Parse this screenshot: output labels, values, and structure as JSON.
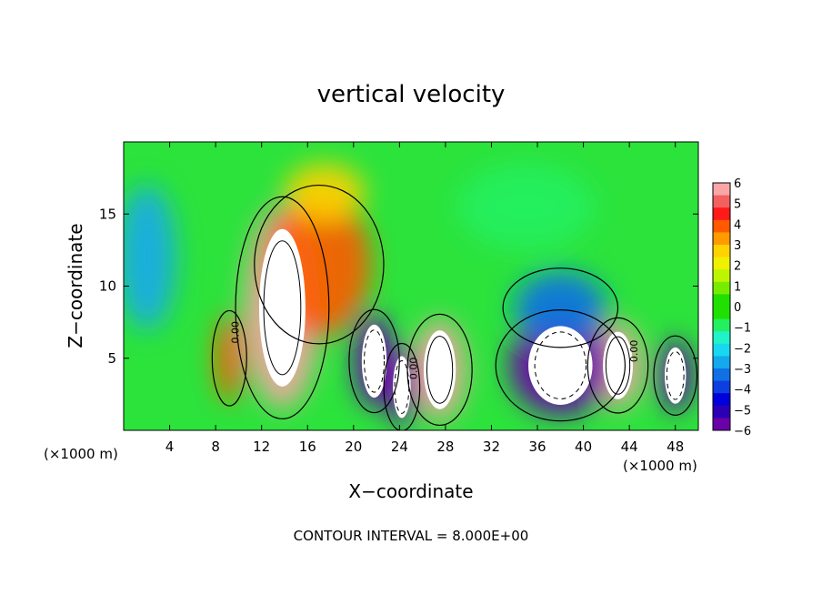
{
  "chart_data": {
    "type": "heatmap",
    "title": "vertical velocity",
    "xlabel": "X−coordinate",
    "ylabel": "Z−coordinate",
    "x_unit_left": "(×1000 m)",
    "x_unit_right": "(×1000 m)",
    "xlim": [
      0,
      50
    ],
    "ylim": [
      0,
      20
    ],
    "x_ticks": [
      4,
      8,
      12,
      16,
      20,
      24,
      28,
      32,
      36,
      40,
      44,
      48
    ],
    "y_ticks": [
      5,
      10,
      15
    ],
    "grid": false,
    "colorbar": {
      "ticks": [
        "6",
        "5",
        "4",
        "3",
        "2",
        "1",
        "0",
        "−1",
        "−2",
        "−3",
        "−4",
        "−5",
        "−6"
      ],
      "range": [
        -6,
        6
      ],
      "colors": [
        "#f8a6a6",
        "#f26060",
        "#ff1a1a",
        "#ff5a00",
        "#ff9a00",
        "#ffd300",
        "#f0f000",
        "#bdf500",
        "#78ec00",
        "#1fe000",
        "#1fe000",
        "#24ef60",
        "#20f3c8",
        "#18d8ef",
        "#14a8ec",
        "#1070e4",
        "#0d3ee0",
        "#0000dc",
        "#2a00b4",
        "#6a00a8"
      ]
    },
    "cells": [
      {
        "x": 13.8,
        "z": 8.5,
        "w": 6.5,
        "h": 14,
        "v": 6
      },
      {
        "x": 17.0,
        "z": 11.5,
        "w": 9,
        "h": 10,
        "v": 4.2
      },
      {
        "x": 17.5,
        "z": 16.5,
        "w": 7,
        "h": 4,
        "v": 2.5
      },
      {
        "x": 27.5,
        "z": 4.2,
        "w": 4.5,
        "h": 7,
        "v": 6
      },
      {
        "x": 43.0,
        "z": 4.5,
        "w": 4.2,
        "h": 6,
        "v": 6
      },
      {
        "x": 9.2,
        "z": 5.0,
        "w": 2.4,
        "h": 6,
        "v": 4
      },
      {
        "x": 21.8,
        "z": 4.8,
        "w": 3.5,
        "h": 6.5,
        "v": -6
      },
      {
        "x": 24.2,
        "z": 3.0,
        "w": 2.5,
        "h": 5.5,
        "v": -6
      },
      {
        "x": 38.0,
        "z": 4.5,
        "w": 9,
        "h": 7,
        "v": -6
      },
      {
        "x": 38.0,
        "z": 8.5,
        "w": 8,
        "h": 5,
        "v": -3.5
      },
      {
        "x": 48.0,
        "z": 3.8,
        "w": 3,
        "h": 5,
        "v": -6
      },
      {
        "x": 2.0,
        "z": 12.0,
        "w": 5,
        "h": 10,
        "v": -2.5
      },
      {
        "x": 35.0,
        "z": 15.5,
        "w": 12,
        "h": 6,
        "v": -0.8
      }
    ],
    "footer": "CONTOUR INTERVAL = 8.000E+00",
    "contour_labels": [
      "0.00",
      "0.00",
      "0.00"
    ]
  }
}
